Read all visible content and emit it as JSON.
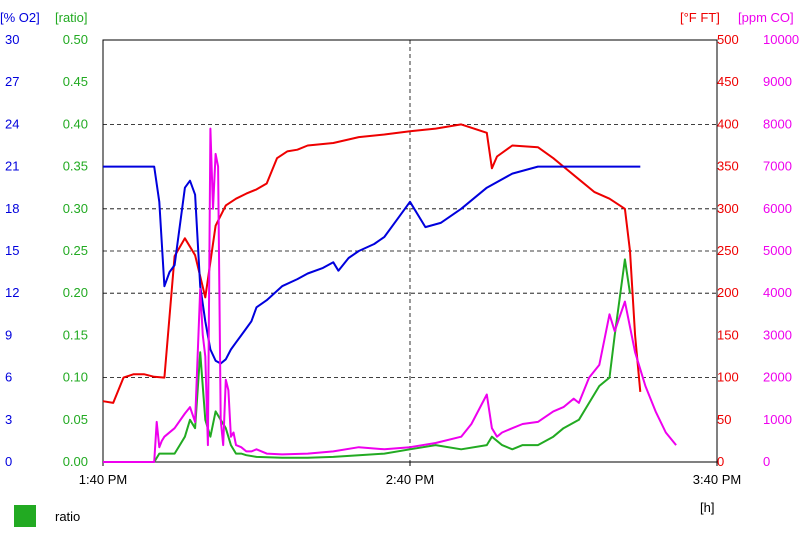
{
  "chart_data": {
    "type": "line",
    "x_unit": "[h]",
    "x_ticks": [
      "1:40 PM",
      "2:40 PM",
      "3:40 PM"
    ],
    "xlim": [
      "1:40 PM",
      "3:40 PM"
    ],
    "grid": "dashed",
    "axes": {
      "o2": {
        "unit": "[% O2]",
        "color": "#0000dd",
        "ylim": [
          0,
          30
        ],
        "ticks": [
          "0",
          "3",
          "6",
          "9",
          "12",
          "15",
          "18",
          "21",
          "24",
          "27",
          "30"
        ]
      },
      "ratio": {
        "unit": "[ratio]",
        "color": "#22aa22",
        "ylim": [
          0,
          0.5
        ],
        "ticks": [
          "0.00",
          "0.05",
          "0.10",
          "0.15",
          "0.20",
          "0.25",
          "0.30",
          "0.35",
          "0.40",
          "0.45",
          "0.50"
        ]
      },
      "ft": {
        "unit": "[°F FT]",
        "color": "#ee0000",
        "ylim": [
          0,
          500
        ],
        "ticks": [
          "0",
          "50",
          "100",
          "150",
          "200",
          "250",
          "300",
          "350",
          "400",
          "450",
          "500"
        ]
      },
      "co": {
        "unit": "[ppm CO]",
        "color": "#ee00ee",
        "ylim": [
          0,
          10000
        ],
        "ticks": [
          "0",
          "1000",
          "2000",
          "3000",
          "4000",
          "5000",
          "6000",
          "7000",
          "8000",
          "9000",
          "10000"
        ]
      }
    },
    "series": [
      {
        "axis": "ft",
        "color": "#ee0000",
        "x": [
          0,
          2,
          4,
          6,
          8,
          10,
          12,
          14,
          16,
          18,
          20,
          22,
          24,
          26,
          28,
          30,
          32,
          34,
          36,
          38,
          40,
          45,
          50,
          55,
          60,
          65,
          70,
          75,
          76,
          77,
          80,
          85,
          88,
          90,
          93,
          96,
          99,
          102,
          103,
          104,
          105
        ],
        "y": [
          72,
          70,
          100,
          104,
          104,
          101,
          100,
          244,
          265,
          245,
          195,
          280,
          304,
          312,
          318,
          323,
          330,
          360,
          368,
          370,
          375,
          378,
          385,
          388,
          392,
          395,
          400,
          390,
          348,
          362,
          375,
          373,
          360,
          350,
          335,
          320,
          312,
          300,
          250,
          150,
          83
        ]
      },
      {
        "axis": "o2",
        "color": "#0000dd",
        "x": [
          0,
          5,
          10,
          11,
          12,
          13,
          14,
          16,
          17,
          18,
          19,
          20,
          21,
          22,
          23,
          24,
          25,
          26,
          27,
          28,
          29,
          30,
          32,
          35,
          38,
          40,
          43,
          45,
          46,
          48,
          50,
          53,
          55,
          58,
          60,
          63,
          66,
          70,
          75,
          80,
          85,
          88,
          93,
          95,
          97,
          100,
          103,
          105
        ],
        "y": [
          21,
          21,
          21,
          18.5,
          12.5,
          13.5,
          14,
          19.5,
          20,
          19,
          12.5,
          10,
          8,
          7.2,
          7,
          7.3,
          8,
          8.5,
          9,
          9.5,
          10,
          11,
          11.5,
          12.5,
          13,
          13.4,
          13.8,
          14.2,
          13.6,
          14.5,
          15,
          15.5,
          16,
          17.5,
          18.5,
          16.7,
          17,
          18,
          19.5,
          20.5,
          21,
          21,
          21,
          21,
          21,
          21,
          21,
          21
        ]
      },
      {
        "axis": "ratio",
        "color": "#22aa22",
        "x": [
          0,
          5,
          10,
          11,
          12,
          14,
          15,
          16,
          17,
          18,
          19,
          20,
          21,
          22,
          23,
          24,
          25,
          26,
          27,
          28,
          30,
          35,
          40,
          45,
          50,
          55,
          60,
          65,
          70,
          75,
          76,
          78,
          80,
          82,
          85,
          88,
          90,
          93,
          95,
          97,
          99,
          100,
          102,
          103
        ],
        "y": [
          0,
          0,
          0,
          0.01,
          0.01,
          0.01,
          0.02,
          0.03,
          0.05,
          0.04,
          0.13,
          0.05,
          0.03,
          0.06,
          0.05,
          0.04,
          0.02,
          0.01,
          0.01,
          0.008,
          0.006,
          0.005,
          0.005,
          0.006,
          0.008,
          0.01,
          0.015,
          0.02,
          0.015,
          0.02,
          0.03,
          0.02,
          0.015,
          0.02,
          0.02,
          0.03,
          0.04,
          0.05,
          0.07,
          0.09,
          0.1,
          0.15,
          0.24,
          0.2
        ]
      },
      {
        "axis": "co",
        "color": "#ee00ee",
        "x": [
          0,
          5,
          10,
          10.5,
          11,
          11.5,
          12,
          14,
          16,
          17,
          18,
          19,
          19.5,
          20,
          20.5,
          21,
          21.5,
          22,
          22.5,
          23,
          23.5,
          24,
          24.5,
          25,
          25.5,
          26,
          27,
          28,
          29,
          30,
          32,
          35,
          40,
          45,
          50,
          55,
          60,
          65,
          70,
          72,
          75,
          76,
          77,
          78,
          80,
          82,
          85,
          88,
          90,
          92,
          93,
          95,
          97,
          99,
          100,
          102,
          104,
          106,
          108,
          110,
          112
        ],
        "y": [
          0,
          0,
          0,
          950,
          350,
          500,
          600,
          800,
          1150,
          1300,
          950,
          4100,
          3000,
          2500,
          400,
          7900,
          6000,
          7300,
          7000,
          1000,
          400,
          1950,
          1700,
          600,
          700,
          400,
          350,
          250,
          250,
          300,
          200,
          180,
          200,
          250,
          350,
          300,
          350,
          450,
          600,
          900,
          1600,
          800,
          600,
          700,
          800,
          900,
          950,
          1200,
          1300,
          1500,
          1400,
          2000,
          2300,
          3500,
          3100,
          3800,
          2600,
          1800,
          1200,
          700,
          400
        ]
      }
    ]
  },
  "legend": {
    "label": "ratio",
    "color": "#22aa22"
  }
}
